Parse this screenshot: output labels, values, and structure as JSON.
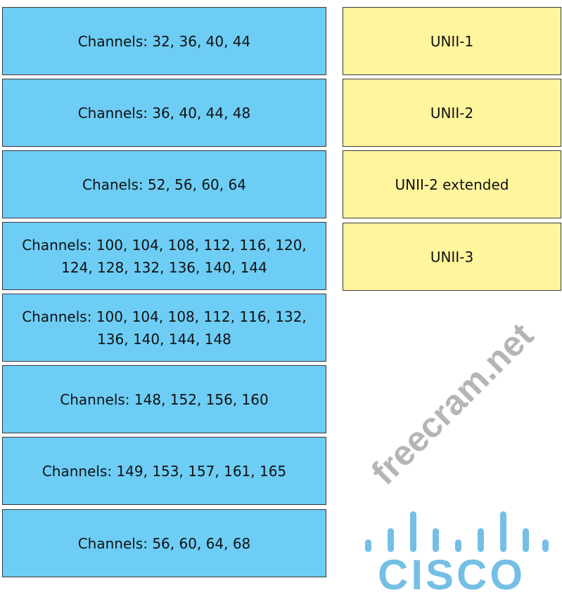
{
  "channel_boxes": [
    {
      "line1": "Channels: 32, 36, 40, 44",
      "line2": ""
    },
    {
      "line1": "Channels: 36, 40, 44, 48",
      "line2": ""
    },
    {
      "line1": "Chanels: 52, 56, 60, 64",
      "line2": ""
    },
    {
      "line1": "Channels: 100, 104, 108, 112, 116, 120,",
      "line2": "124, 128, 132, 136, 140, 144"
    },
    {
      "line1": "Channels: 100, 104, 108, 112, 116, 132,",
      "line2": "136, 140, 144, 148"
    },
    {
      "line1": "Channels: 148, 152, 156, 160",
      "line2": ""
    },
    {
      "line1": "Channels: 149, 153, 157, 161, 165",
      "line2": ""
    },
    {
      "line1": "Channels: 56, 60, 64, 68",
      "line2": ""
    }
  ],
  "band_boxes": [
    "UNII-1",
    "UNII-2",
    "UNII-2 extended",
    "UNII-3"
  ],
  "watermark": "freecram.net",
  "logo": "CISCO",
  "colors": {
    "channel_fill": "#6dcdf5",
    "band_fill": "#fff59c"
  }
}
